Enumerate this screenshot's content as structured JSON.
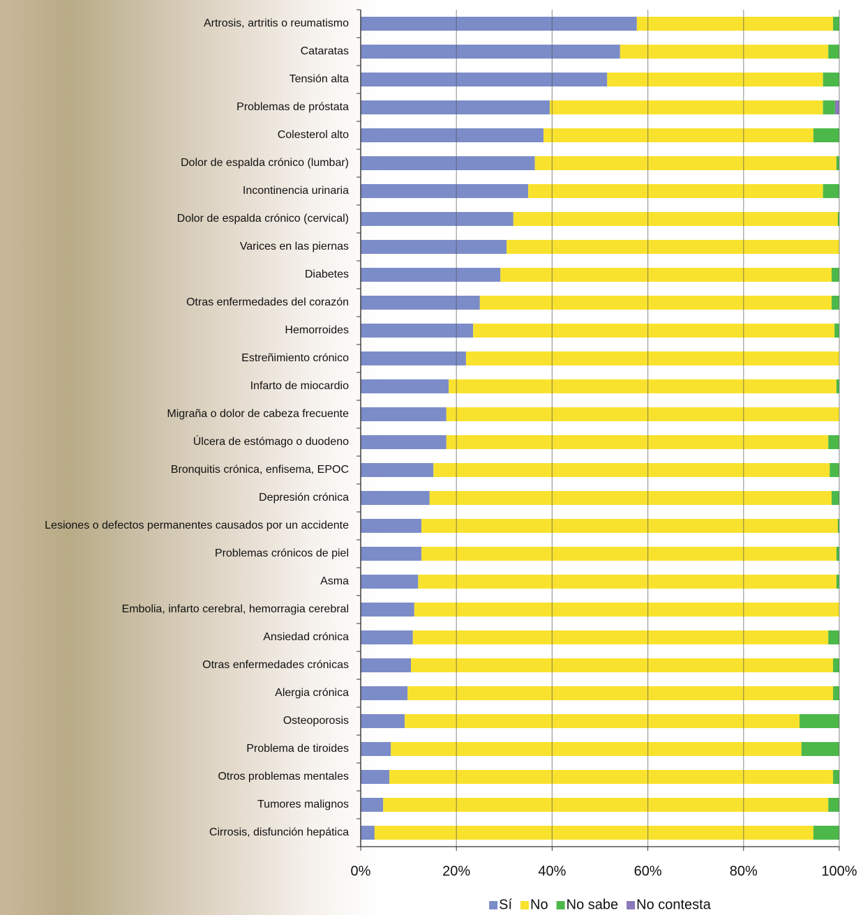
{
  "chart_data": {
    "type": "stacked_barh",
    "categories": [
      "Artrosis, artritis o reumatismo",
      "Cataratas",
      "Tensión alta",
      "Problemas de próstata",
      "Colesterol alto",
      "Dolor de espalda crónico (lumbar)",
      "Incontinencia urinaria",
      "Dolor de espalda crónico (cervical)",
      "Varices en las piernas",
      "Diabetes",
      "Otras enfermedades del corazón",
      "Hemorroides",
      "Estreñimiento crónico",
      "Infarto de miocardio",
      "Migraña o dolor de cabeza frecuente",
      "Úlcera de estómago o duodeno",
      "Bronquitis crónica, enfisema, EPOC",
      "Depresión crónica",
      "Lesiones o defectos permanentes causados por un accidente",
      "Problemas crónicos de piel",
      "Asma",
      "Embolia, infarto cerebral, hemorragia cerebral",
      "Ansiedad crónica",
      "Otras enfermedades crónicas",
      "Alergia crónica",
      "Osteoporosis",
      "Problema de tiroides",
      "Otros problemas mentales",
      "Tumores malignos",
      "Cirrosis, disfunción hepática"
    ],
    "series": [
      {
        "name": "Sí",
        "color": "#7b8cc8",
        "values": [
          57.7,
          54.2,
          51.5,
          39.5,
          38.2,
          36.4,
          35.0,
          31.9,
          30.5,
          29.2,
          24.9,
          23.5,
          22.0,
          18.4,
          17.9,
          17.9,
          15.2,
          14.4,
          12.7,
          12.7,
          12.0,
          11.2,
          10.9,
          10.5,
          9.8,
          9.2,
          6.3,
          6.0,
          4.7,
          2.9
        ]
      },
      {
        "name": "No",
        "color": "#f9e22d",
        "values": [
          41.0,
          43.5,
          45.1,
          57.1,
          56.4,
          63.0,
          61.6,
          67.8,
          69.5,
          69.2,
          73.5,
          75.5,
          78.0,
          81.0,
          82.1,
          79.8,
          82.8,
          84.0,
          87.0,
          86.7,
          87.4,
          88.8,
          86.8,
          88.2,
          88.9,
          82.5,
          85.8,
          92.7,
          93.0,
          91.7
        ]
      },
      {
        "name": "No sabe",
        "color": "#4cb84a",
        "values": [
          1.3,
          2.3,
          3.4,
          2.5,
          5.4,
          0.6,
          3.4,
          0.3,
          0,
          1.6,
          1.6,
          1.0,
          0,
          0.6,
          0,
          2.3,
          2.0,
          1.6,
          0.3,
          0.6,
          0.6,
          0,
          2.3,
          1.3,
          1.3,
          8.3,
          7.9,
          1.3,
          2.3,
          5.4
        ]
      },
      {
        "name": "No contesta",
        "color": "#8a78b8",
        "values": [
          0,
          0,
          0,
          0.9,
          0,
          0,
          0,
          0,
          0,
          0,
          0,
          0,
          0,
          0,
          0,
          0,
          0,
          0,
          0,
          0,
          0,
          0,
          0,
          0,
          0,
          0,
          0,
          0,
          0,
          0
        ]
      }
    ],
    "xlim": [
      0,
      100
    ],
    "xticks": [
      {
        "value": 0,
        "label": "0%"
      },
      {
        "value": 20,
        "label": "20%"
      },
      {
        "value": 40,
        "label": "40%"
      },
      {
        "value": 60,
        "label": "60%"
      },
      {
        "value": 80,
        "label": "80%"
      },
      {
        "value": 100,
        "label": "100%"
      }
    ],
    "grid": true,
    "legend": "bottom"
  }
}
